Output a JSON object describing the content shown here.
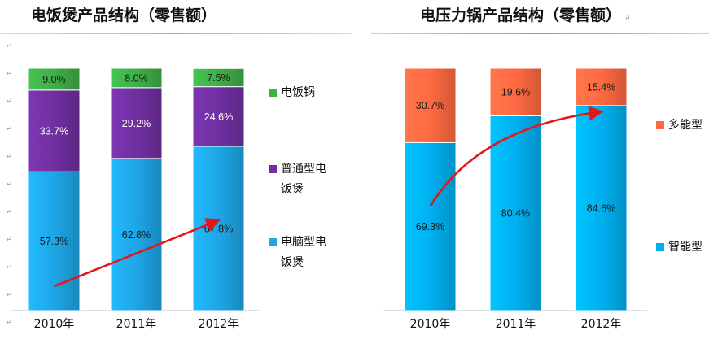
{
  "paragraph_mark": "↵",
  "chart_data": [
    {
      "type": "bar",
      "stacked": true,
      "title": "电饭煲产品结构（零售额）",
      "categories": [
        "2010年",
        "2011年",
        "2012年"
      ],
      "unit": "%",
      "ylim": [
        0,
        100
      ],
      "series": [
        {
          "name": "电脑型电饭煲",
          "values": [
            57.3,
            62.8,
            67.8
          ],
          "labels": [
            "57.3%",
            "62.8%",
            "67.8%"
          ],
          "color": "#1ea6e6"
        },
        {
          "name": "普通型电饭煲",
          "values": [
            33.7,
            29.2,
            24.6
          ],
          "labels": [
            "33.7%",
            "29.2%",
            "24.6%"
          ],
          "color": "#7030a0"
        },
        {
          "name": "电饭锅",
          "values": [
            9.0,
            8.0,
            7.5
          ],
          "labels": [
            "9.0%",
            "8.0%",
            "7.5%"
          ],
          "color": "#3fae49"
        }
      ],
      "legend": {
        "position": "right",
        "entries": [
          {
            "lines": [
              "电饭锅"
            ],
            "color": "#3fae49"
          },
          {
            "lines": [
              "普通型电",
              "饭煲"
            ],
            "color": "#7030a0"
          },
          {
            "lines": [
              "电脑型电",
              "饭煲"
            ],
            "color": "#1ea6e6"
          }
        ]
      },
      "trend_arrow": {
        "color": "#e3161b",
        "direction": "up"
      }
    },
    {
      "type": "bar",
      "stacked": true,
      "title": "电压力锅产品结构（零售额）",
      "categories": [
        "2010年",
        "2011年",
        "2012年"
      ],
      "unit": "%",
      "ylim": [
        0,
        100
      ],
      "series": [
        {
          "name": "智能型",
          "values": [
            69.3,
            80.4,
            84.6
          ],
          "labels": [
            "69.3%",
            "80.4%",
            "84.6%"
          ],
          "color": "#00b0f0"
        },
        {
          "name": "多能型",
          "values": [
            30.7,
            19.6,
            15.4
          ],
          "labels": [
            "30.7%",
            "19.6%",
            "15.4%"
          ],
          "color": "#ff6a42"
        }
      ],
      "legend": {
        "position": "right",
        "entries": [
          {
            "lines": [
              "多能型"
            ],
            "color": "#ff6a42"
          },
          {
            "lines": [
              "智能型"
            ],
            "color": "#00b0f0"
          }
        ]
      },
      "trend_arrow": {
        "color": "#e3161b",
        "direction": "up"
      }
    }
  ]
}
